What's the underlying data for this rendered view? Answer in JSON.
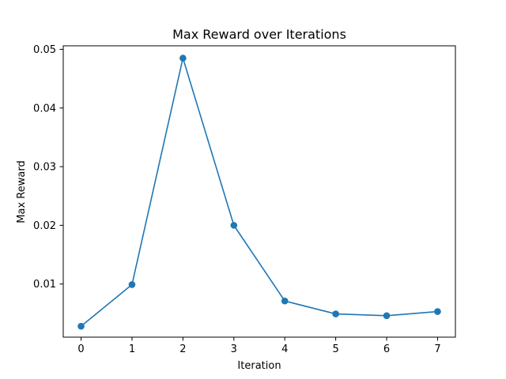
{
  "chart_data": {
    "type": "line",
    "title": "Max Reward over Iterations",
    "xlabel": "Iteration",
    "ylabel": "Max Reward",
    "x": [
      0,
      1,
      2,
      3,
      4,
      5,
      6,
      7
    ],
    "series": [
      {
        "values": [
          0.0028,
          0.0099,
          0.0485,
          0.02,
          0.0071,
          0.0049,
          0.0046,
          0.0053
        ],
        "color": "#1f77b4",
        "marker": "circle"
      }
    ],
    "xlim": [
      -0.35,
      7.35
    ],
    "ylim": [
      0.00094,
      0.0506
    ],
    "xticks": [
      0,
      1,
      2,
      3,
      4,
      5,
      6,
      7
    ],
    "yticks": [
      0.01,
      0.02,
      0.03,
      0.04,
      0.05
    ],
    "ytick_labels": [
      "0.01",
      "0.02",
      "0.03",
      "0.04",
      "0.05"
    ],
    "grid": false,
    "legend": "none"
  }
}
